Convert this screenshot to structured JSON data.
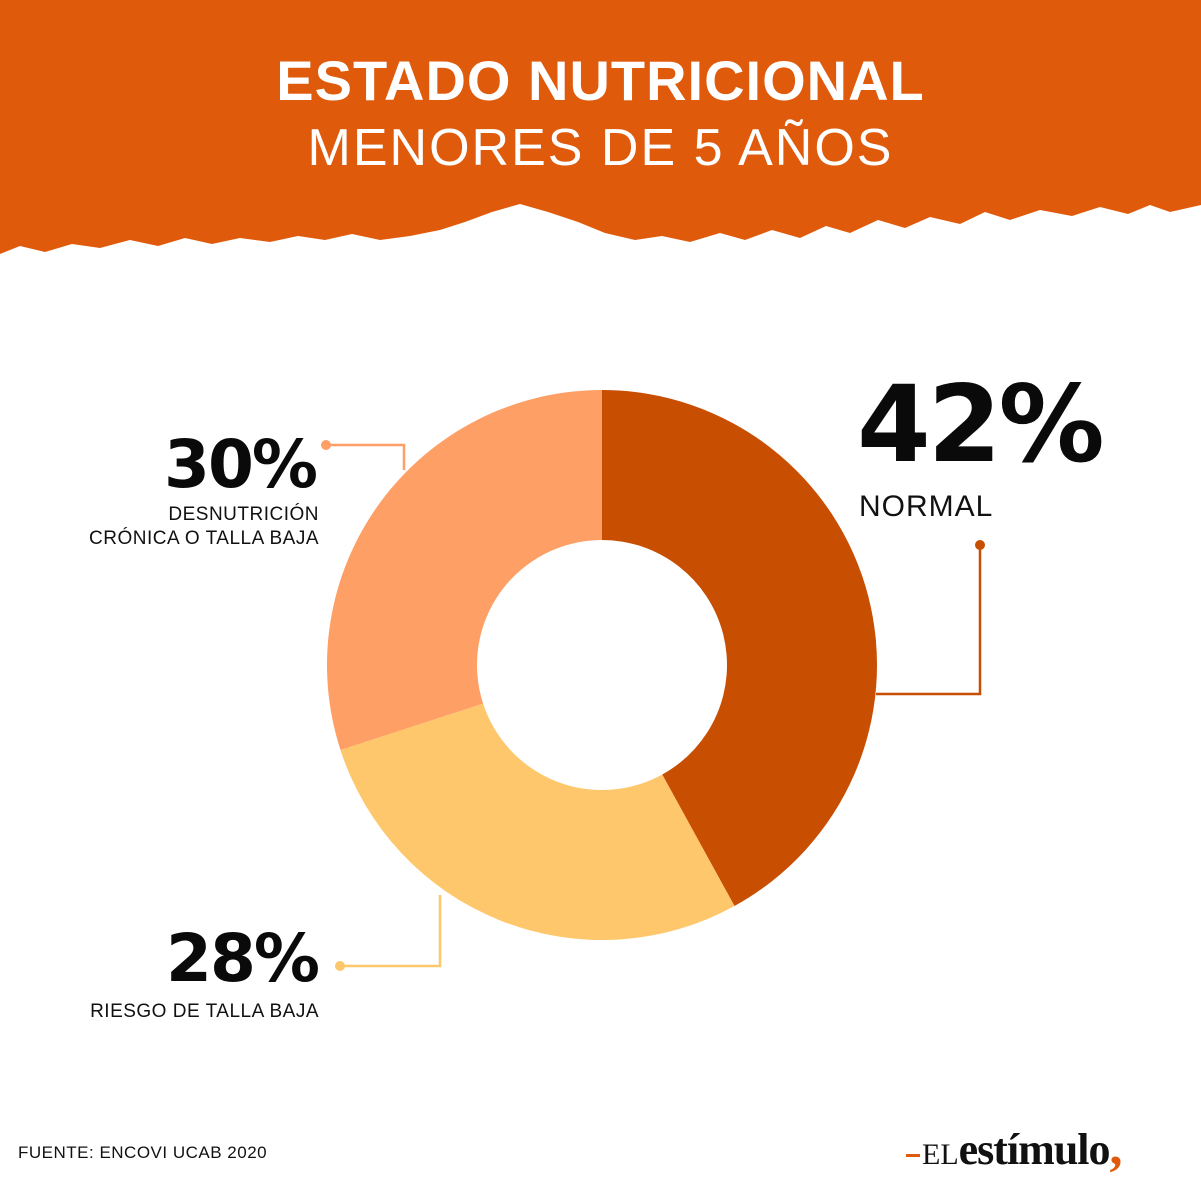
{
  "header": {
    "title": "ESTADO NUTRICIONAL",
    "subtitle": "MENORES DE 5 AÑOS"
  },
  "colors": {
    "header_band": "#e05a0c",
    "normal": "#c84e02",
    "riesgo": "#fec76b",
    "desnutricion": "#fe9f66",
    "background": "#ffffff"
  },
  "chart_data": {
    "type": "pie",
    "variant": "donut",
    "slices": [
      {
        "label": "NORMAL",
        "value": 42,
        "display": "42%",
        "color": "#c84e02"
      },
      {
        "label": "RIESGO DE TALLA BAJA",
        "value": 28,
        "display": "28%",
        "color": "#fec76b"
      },
      {
        "label": "DESNUTRICIÓN CRÓNICA O TALLA BAJA",
        "label_lines": [
          "DESNUTRICIÓN",
          "CRÓNICA O TALLA BAJA"
        ],
        "value": 30,
        "display": "30%",
        "color": "#fe9f66"
      }
    ],
    "start": "12 o'clock",
    "direction": "clockwise"
  },
  "footer": {
    "source": "FUENTE: ENCOVI UCAB 2020",
    "logo_prefix": "EL",
    "logo_word": "estímulo",
    "logo_comma": ","
  }
}
